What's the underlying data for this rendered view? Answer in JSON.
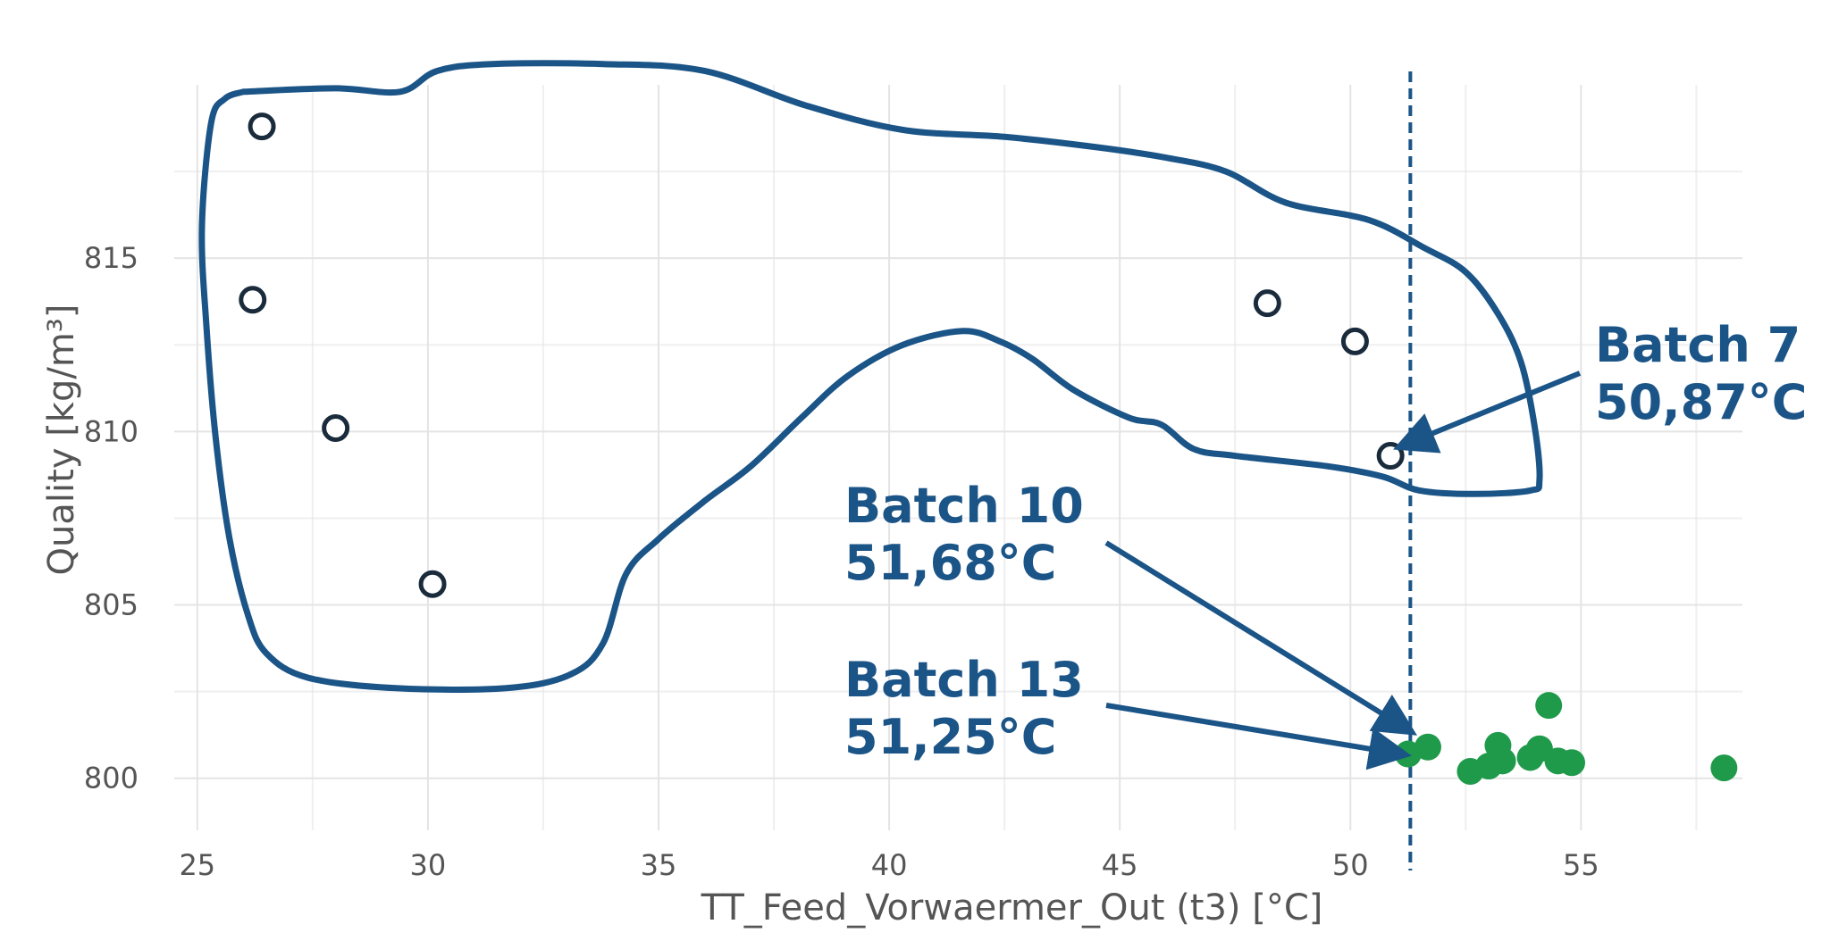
{
  "chart_data": {
    "type": "scatter",
    "title": "",
    "xlabel": "TT_Feed_Vorwaermer_Out (t3) [°C]",
    "ylabel": "Quality [kg/m³]",
    "xlim": [
      24.5,
      58.5
    ],
    "ylim": [
      798.5,
      820
    ],
    "x_ticks": [
      25,
      30,
      35,
      40,
      45,
      50,
      55
    ],
    "y_ticks": [
      800,
      805,
      810,
      815
    ],
    "x_tick_labels": [
      "25",
      "30",
      "35",
      "40",
      "45",
      "50",
      "55"
    ],
    "y_tick_labels": [
      "800",
      "805",
      "810",
      "815"
    ],
    "grid": true,
    "colors": {
      "outline": "#1b5487",
      "hollow": "#1a2b3c",
      "filled": "#1f9a4b",
      "grid": "#e4e4e4"
    },
    "series": [
      {
        "marker": "hollow-circle",
        "color": "#1a2b3c",
        "points": [
          [
            26.4,
            818.8
          ],
          [
            26.2,
            813.8
          ],
          [
            28.0,
            810.1
          ],
          [
            30.1,
            805.6
          ],
          [
            48.2,
            813.7
          ],
          [
            50.1,
            812.6
          ],
          [
            50.87,
            809.3
          ]
        ]
      },
      {
        "marker": "filled-circle",
        "color": "#1f9a4b",
        "points": [
          [
            51.25,
            800.7
          ],
          [
            51.68,
            800.9
          ],
          [
            52.6,
            800.2
          ],
          [
            53.0,
            800.35
          ],
          [
            53.2,
            800.95
          ],
          [
            53.3,
            800.5
          ],
          [
            53.9,
            800.6
          ],
          [
            54.1,
            800.85
          ],
          [
            54.3,
            802.1
          ],
          [
            54.5,
            800.5
          ],
          [
            54.8,
            800.45
          ],
          [
            58.1,
            800.3
          ]
        ]
      }
    ],
    "reference_line": {
      "x": 51.3,
      "style": "dashed",
      "color": "#1b5487"
    },
    "region_outline": [
      [
        26.0,
        819.8
      ],
      [
        28.0,
        819.9
      ],
      [
        29.4,
        819.8
      ],
      [
        30.2,
        820.4
      ],
      [
        31.4,
        820.6
      ],
      [
        33.8,
        820.6
      ],
      [
        36.0,
        820.4
      ],
      [
        38.2,
        819.4
      ],
      [
        40.3,
        818.7
      ],
      [
        42.5,
        818.5
      ],
      [
        44.5,
        818.2
      ],
      [
        46.0,
        817.9
      ],
      [
        47.3,
        817.5
      ],
      [
        48.6,
        816.6
      ],
      [
        50.4,
        816.1
      ],
      [
        51.6,
        815.3
      ],
      [
        52.5,
        814.6
      ],
      [
        53.2,
        813.4
      ],
      [
        53.7,
        812.0
      ],
      [
        54.0,
        810.1
      ],
      [
        54.1,
        808.6
      ],
      [
        53.9,
        808.3
      ],
      [
        52.7,
        808.2
      ],
      [
        51.5,
        808.3
      ],
      [
        50.7,
        808.7
      ],
      [
        49.5,
        809.0
      ],
      [
        47.5,
        809.3
      ],
      [
        46.6,
        809.5
      ],
      [
        45.9,
        810.2
      ],
      [
        45.2,
        810.4
      ],
      [
        44.0,
        811.2
      ],
      [
        43.1,
        812.1
      ],
      [
        42.4,
        812.6
      ],
      [
        41.6,
        812.9
      ],
      [
        40.3,
        812.5
      ],
      [
        39.1,
        811.6
      ],
      [
        38.1,
        810.4
      ],
      [
        37.0,
        809.0
      ],
      [
        36.0,
        808.0
      ],
      [
        35.0,
        806.9
      ],
      [
        34.3,
        805.9
      ],
      [
        33.8,
        803.9
      ],
      [
        33.1,
        803.0
      ],
      [
        31.7,
        802.6
      ],
      [
        29.3,
        802.6
      ],
      [
        27.4,
        802.9
      ],
      [
        26.5,
        803.6
      ],
      [
        26.1,
        804.7
      ],
      [
        25.7,
        806.9
      ],
      [
        25.4,
        809.8
      ],
      [
        25.2,
        813.0
      ],
      [
        25.1,
        815.9
      ],
      [
        25.3,
        818.9
      ],
      [
        25.6,
        819.6
      ],
      [
        26.0,
        819.8
      ]
    ],
    "annotations": [
      {
        "lines": [
          "Batch 7",
          "50,87°C"
        ],
        "target": [
          50.87,
          809.6
        ]
      },
      {
        "lines": [
          "Batch 10",
          "51,68°C"
        ],
        "target": [
          51.25,
          801.4
        ]
      },
      {
        "lines": [
          "Batch 13",
          "51,25°C"
        ],
        "target": [
          51.1,
          800.7
        ]
      }
    ]
  }
}
